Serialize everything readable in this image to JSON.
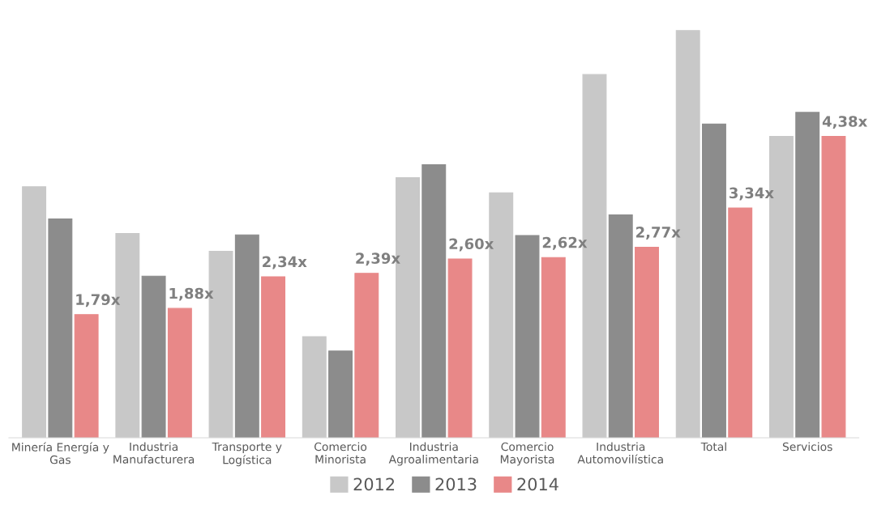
{
  "chart_data": {
    "type": "bar",
    "categories": [
      "Minería Energía y\nGas",
      "Industria\nManufacturera",
      "Transporte y\nLogística",
      "Comercio\nMinorista",
      "Industria\nAgroalimentaria",
      "Comercio\nMayorista",
      "Industria\nAutomovilística",
      "Total",
      "Servicios"
    ],
    "series": [
      {
        "name": "2012",
        "color": "#c8c8c8",
        "values": [
          3.65,
          2.97,
          2.71,
          1.47,
          3.78,
          3.56,
          5.28,
          5.92,
          4.38
        ]
      },
      {
        "name": "2013",
        "color": "#8c8c8c",
        "values": [
          3.18,
          2.35,
          2.95,
          1.26,
          3.97,
          2.94,
          3.24,
          4.56,
          4.73
        ]
      },
      {
        "name": "2014",
        "color": "#e88888",
        "values": [
          1.79,
          1.88,
          2.34,
          2.39,
          2.6,
          2.62,
          2.77,
          3.34,
          4.38
        ],
        "value_labels": [
          "1,79x",
          "1,88x",
          "2,34x",
          "2,39x",
          "2,60x",
          "2,62x",
          "2,77x",
          "3,34x",
          "4,38x"
        ]
      }
    ],
    "legend": "bottom",
    "grid": false
  }
}
